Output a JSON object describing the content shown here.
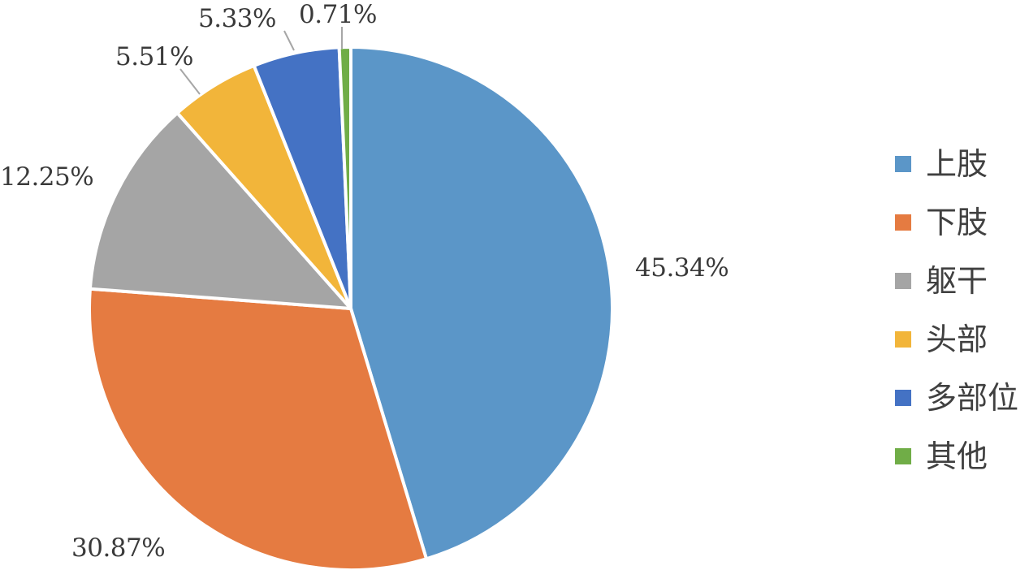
{
  "chart_data": {
    "type": "pie",
    "categories": [
      "上肢",
      "下肢",
      "躯干",
      "头部",
      "多部位",
      "其他"
    ],
    "values": [
      45.34,
      30.87,
      12.25,
      5.51,
      5.33,
      0.71
    ],
    "labels": [
      "45.34%",
      "30.87%",
      "12.25%",
      "5.51%",
      "5.33%",
      "0.71%"
    ],
    "colors": [
      "#5b96c8",
      "#e57b41",
      "#a5a5a5",
      "#f2b53a",
      "#4472c4",
      "#70ad47"
    ],
    "legend_position": "right",
    "title": "",
    "start_angle_deg": 0,
    "direction": "clockwise"
  }
}
